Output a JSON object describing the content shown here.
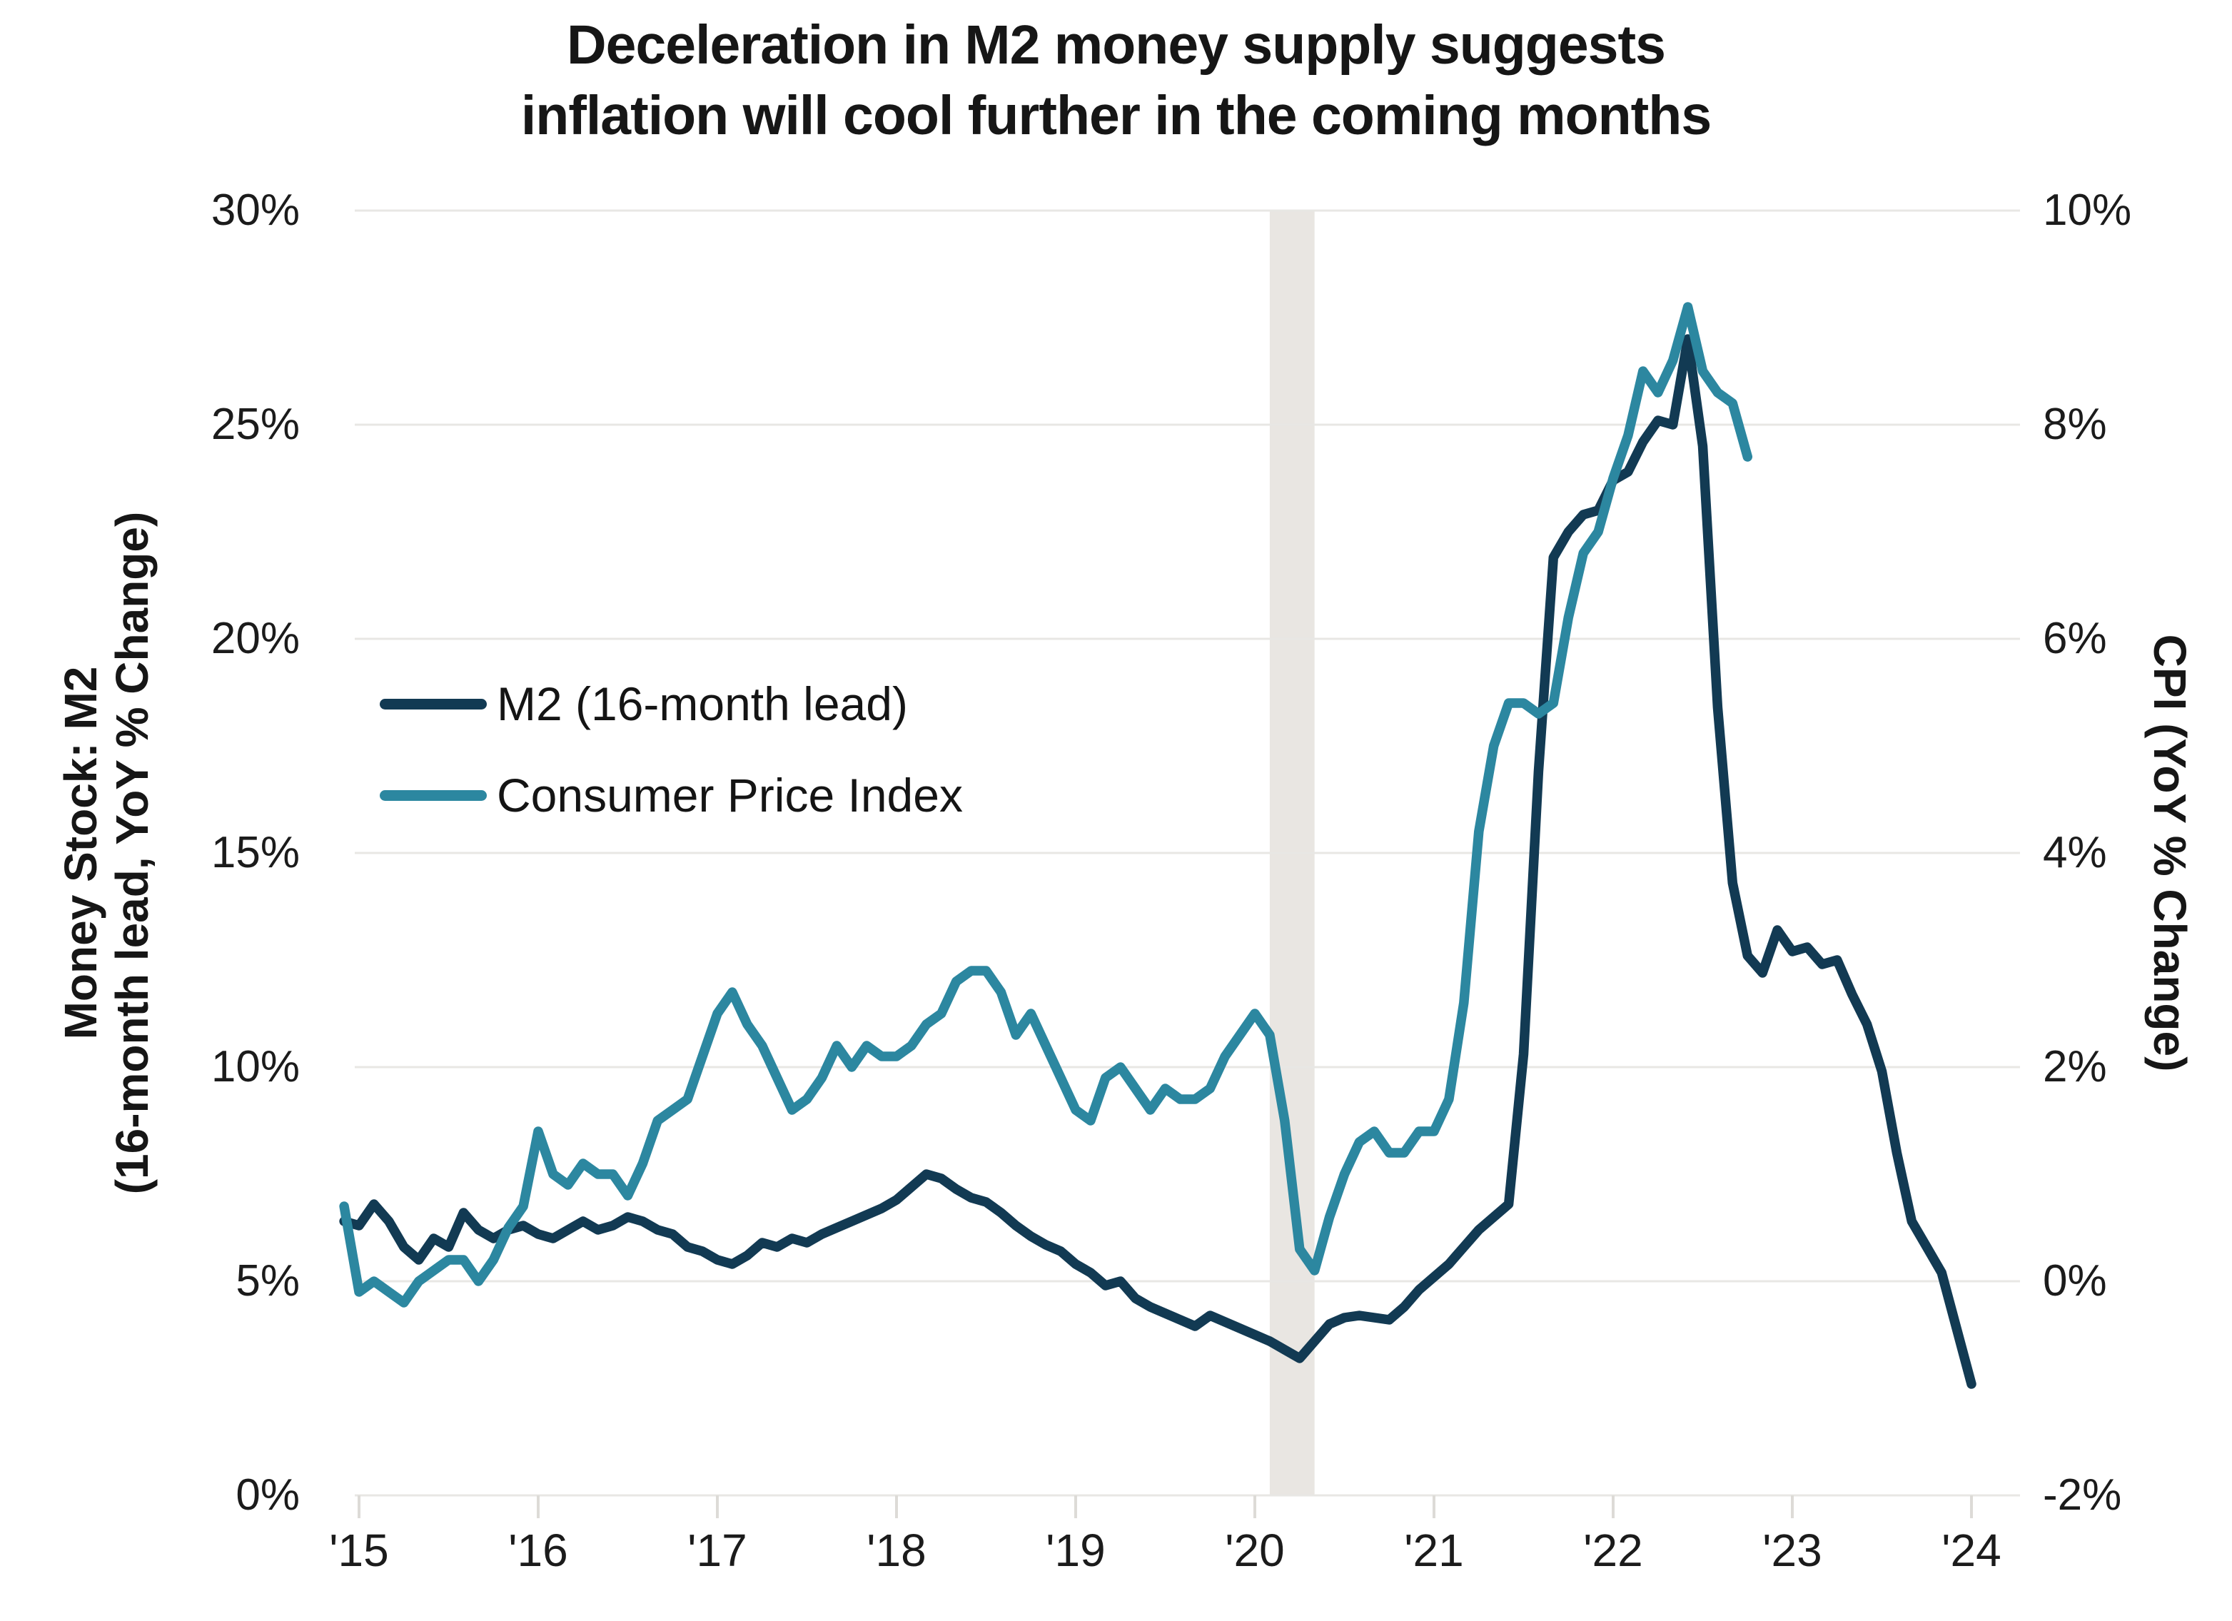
{
  "title": {
    "line1": "Deceleration in M2 money supply suggests",
    "line2": "inflation will cool further in the coming months"
  },
  "chart_data": {
    "type": "line",
    "frequency": "monthly",
    "x_start": "2014-12",
    "x_tick_labels": [
      "'15",
      "'16",
      "'17",
      "'18",
      "'19",
      "'20",
      "'21",
      "'22",
      "'23",
      "'24"
    ],
    "left_axis": {
      "label_line1": "Money Stock: M2",
      "label_line2": "(16-month lead, YoY % Change)",
      "ticks": [
        "30%",
        "25%",
        "20%",
        "15%",
        "10%",
        "5%",
        "0%"
      ],
      "tick_values": [
        30,
        25,
        20,
        15,
        10,
        5,
        0
      ],
      "range": [
        0,
        30
      ]
    },
    "right_axis": {
      "label": "CPI (YoY % Change)",
      "ticks": [
        "10%",
        "8%",
        "6%",
        "4%",
        "2%",
        "0%",
        "-2%"
      ],
      "tick_values": [
        10,
        8,
        6,
        4,
        2,
        0,
        -2
      ],
      "range": [
        -2,
        10
      ]
    },
    "recession_band": {
      "start": "2020-02",
      "end": "2020-05",
      "color": "#E9E6E2"
    },
    "grid_color": "#E8E7E4",
    "series": [
      {
        "name": "M2 (16-month lead)",
        "axis": "left",
        "color": "#123A53",
        "start": "2014-12",
        "end": "2024-01",
        "values": [
          6.4,
          6.3,
          6.8,
          6.4,
          5.8,
          5.5,
          6.0,
          5.8,
          6.6,
          6.2,
          6.0,
          6.2,
          6.3,
          6.1,
          6.0,
          6.2,
          6.4,
          6.2,
          6.3,
          6.5,
          6.4,
          6.2,
          6.1,
          5.8,
          5.7,
          5.5,
          5.4,
          5.6,
          5.9,
          5.8,
          6.0,
          5.9,
          6.1,
          6.25,
          6.4,
          6.55,
          6.7,
          6.9,
          7.2,
          7.5,
          7.4,
          7.15,
          6.95,
          6.85,
          6.6,
          6.3,
          6.05,
          5.85,
          5.7,
          5.4,
          5.2,
          4.9,
          5.0,
          4.6,
          4.4,
          4.25,
          4.1,
          3.95,
          4.2,
          4.05,
          3.9,
          3.75,
          3.6,
          3.4,
          3.2,
          3.6,
          4.0,
          4.15,
          4.2,
          4.15,
          4.1,
          4.4,
          4.8,
          5.1,
          5.4,
          5.8,
          6.2,
          6.5,
          6.8,
          10.3,
          16.9,
          21.9,
          22.5,
          22.9,
          23.0,
          23.7,
          23.9,
          24.6,
          25.1,
          25.0,
          27.0,
          24.5,
          18.4,
          14.3,
          12.6,
          12.2,
          13.2,
          12.7,
          12.8,
          12.4,
          12.5,
          11.7,
          11.0,
          9.9,
          8.0,
          6.4,
          5.8,
          5.2,
          3.9,
          2.6
        ]
      },
      {
        "name": "Consumer Price Index",
        "axis": "right",
        "color": "#2C87A0",
        "start": "2014-12",
        "end": "2022-10",
        "values": [
          0.7,
          -0.1,
          0.0,
          -0.1,
          -0.2,
          0.0,
          0.1,
          0.2,
          0.2,
          0.0,
          0.2,
          0.5,
          0.7,
          1.4,
          1.0,
          0.9,
          1.1,
          1.0,
          1.0,
          0.8,
          1.1,
          1.5,
          1.6,
          1.7,
          2.1,
          2.5,
          2.7,
          2.4,
          2.2,
          1.9,
          1.6,
          1.7,
          1.9,
          2.2,
          2.0,
          2.2,
          2.1,
          2.1,
          2.2,
          2.4,
          2.5,
          2.8,
          2.9,
          2.9,
          2.7,
          2.3,
          2.5,
          2.2,
          1.9,
          1.6,
          1.5,
          1.9,
          2.0,
          1.8,
          1.6,
          1.8,
          1.7,
          1.7,
          1.8,
          2.1,
          2.3,
          2.5,
          2.3,
          1.5,
          0.3,
          0.1,
          0.6,
          1.0,
          1.3,
          1.4,
          1.2,
          1.2,
          1.4,
          1.4,
          1.7,
          2.6,
          4.2,
          5.0,
          5.4,
          5.4,
          5.3,
          5.4,
          6.2,
          6.8,
          7.0,
          7.5,
          7.9,
          8.5,
          8.3,
          8.6,
          9.1,
          8.5,
          8.3,
          8.2,
          7.7
        ]
      }
    ]
  }
}
